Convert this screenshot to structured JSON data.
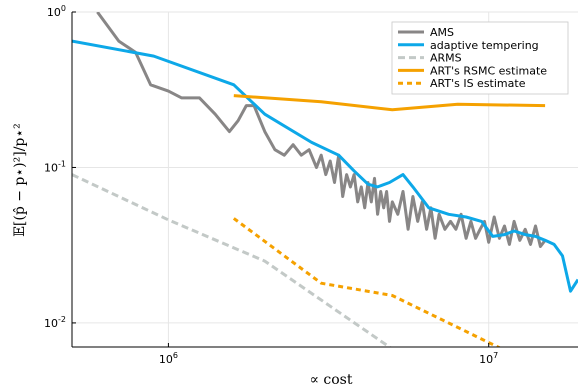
{
  "chart_data": {
    "type": "line",
    "title": "",
    "xlabel": "∝  cost",
    "ylabel": "𝔼[(p̂ − p⋆)²]/p⋆²",
    "xscale": "log",
    "yscale": "log",
    "xlim": [
      500000,
      19000000
    ],
    "ylim": [
      0.007,
      1
    ],
    "grid": true,
    "legend_position": "top-right",
    "x_ticks": [
      {
        "value": 1000000,
        "base": "10",
        "exp": "6"
      },
      {
        "value": 10000000,
        "base": "10",
        "exp": "7"
      }
    ],
    "y_ticks": [
      {
        "value": 1,
        "base": "10",
        "exp": "0"
      },
      {
        "value": 0.1,
        "base": "10",
        "exp": "-1"
      },
      {
        "value": 0.01,
        "base": "10",
        "exp": "-2"
      }
    ],
    "series": [
      {
        "name": "AMS",
        "color": "#888686",
        "dash": "solid",
        "x": [
          600000,
          700000,
          790000,
          880000,
          1000000,
          1100000,
          1250000,
          1400000,
          1550000,
          1650000,
          1750000,
          1850000,
          2000000,
          2150000,
          2300000,
          2450000,
          2600000,
          2750000,
          2900000,
          3000000,
          3100000,
          3200000,
          3300000,
          3400000,
          3500000,
          3600000,
          3700000,
          3800000,
          3900000,
          4000000,
          4100000,
          4200000,
          4300000,
          4400000,
          4500000,
          4600000,
          4700000,
          4800000,
          4900000,
          5000000,
          5200000,
          5400000,
          5600000,
          5800000,
          6000000,
          6200000,
          6400000,
          6600000,
          6800000,
          7000000,
          7300000,
          7600000,
          7900000,
          8200000,
          8500000,
          8800000,
          9100000,
          9400000,
          9700000,
          10000000,
          10400000,
          10800000,
          11200000,
          11600000,
          12000000,
          12500000,
          13000000,
          13500000,
          14000000,
          14500000,
          15000000
        ],
        "values": [
          1.0,
          0.65,
          0.55,
          0.34,
          0.31,
          0.28,
          0.28,
          0.22,
          0.17,
          0.2,
          0.25,
          0.25,
          0.17,
          0.13,
          0.12,
          0.14,
          0.12,
          0.13,
          0.1,
          0.12,
          0.09,
          0.11,
          0.08,
          0.12,
          0.065,
          0.09,
          0.075,
          0.09,
          0.06,
          0.075,
          0.055,
          0.08,
          0.06,
          0.085,
          0.05,
          0.07,
          0.055,
          0.07,
          0.045,
          0.06,
          0.05,
          0.07,
          0.04,
          0.065,
          0.045,
          0.06,
          0.04,
          0.055,
          0.035,
          0.05,
          0.04,
          0.045,
          0.04,
          0.05,
          0.035,
          0.045,
          0.035,
          0.04,
          0.045,
          0.033,
          0.048,
          0.035,
          0.042,
          0.032,
          0.045,
          0.034,
          0.04,
          0.032,
          0.042,
          0.031,
          0.034
        ]
      },
      {
        "name": "adaptive tempering",
        "color": "#0da8e8",
        "dash": "solid",
        "x": [
          500000,
          900000,
          1600000,
          2000000,
          2800000,
          3400000,
          3800000,
          4200000,
          4500000,
          4900000,
          5400000,
          5800000,
          6500000,
          7500000,
          8500000,
          9500000,
          10300000,
          11200000,
          12000000,
          13000000,
          14000000,
          15000000,
          16000000,
          17000000,
          18000000,
          19000000
        ],
        "values": [
          0.65,
          0.52,
          0.34,
          0.22,
          0.145,
          0.12,
          0.095,
          0.078,
          0.075,
          0.08,
          0.09,
          0.075,
          0.055,
          0.05,
          0.048,
          0.045,
          0.036,
          0.037,
          0.039,
          0.037,
          0.036,
          0.034,
          0.032,
          0.027,
          0.016,
          0.019
        ]
      },
      {
        "name": "ARMS",
        "color": "#c3c9c7",
        "dash": "dashed",
        "x": [
          500000,
          1000000,
          2000000,
          5000000
        ],
        "values": [
          0.09,
          0.046,
          0.025,
          0.0068
        ]
      },
      {
        "name": "ART's RSMC estimate",
        "color": "#f5a100",
        "dash": "solid",
        "x": [
          1600000,
          3000000,
          5000000,
          8000000,
          15000000
        ],
        "values": [
          0.29,
          0.265,
          0.235,
          0.255,
          0.25
        ]
      },
      {
        "name": "ART's IS estimate",
        "color": "#f5a100",
        "dash": "dotted",
        "x": [
          1600000,
          3000000,
          5000000,
          11000000
        ],
        "values": [
          0.047,
          0.018,
          0.015,
          0.0068
        ]
      }
    ]
  }
}
